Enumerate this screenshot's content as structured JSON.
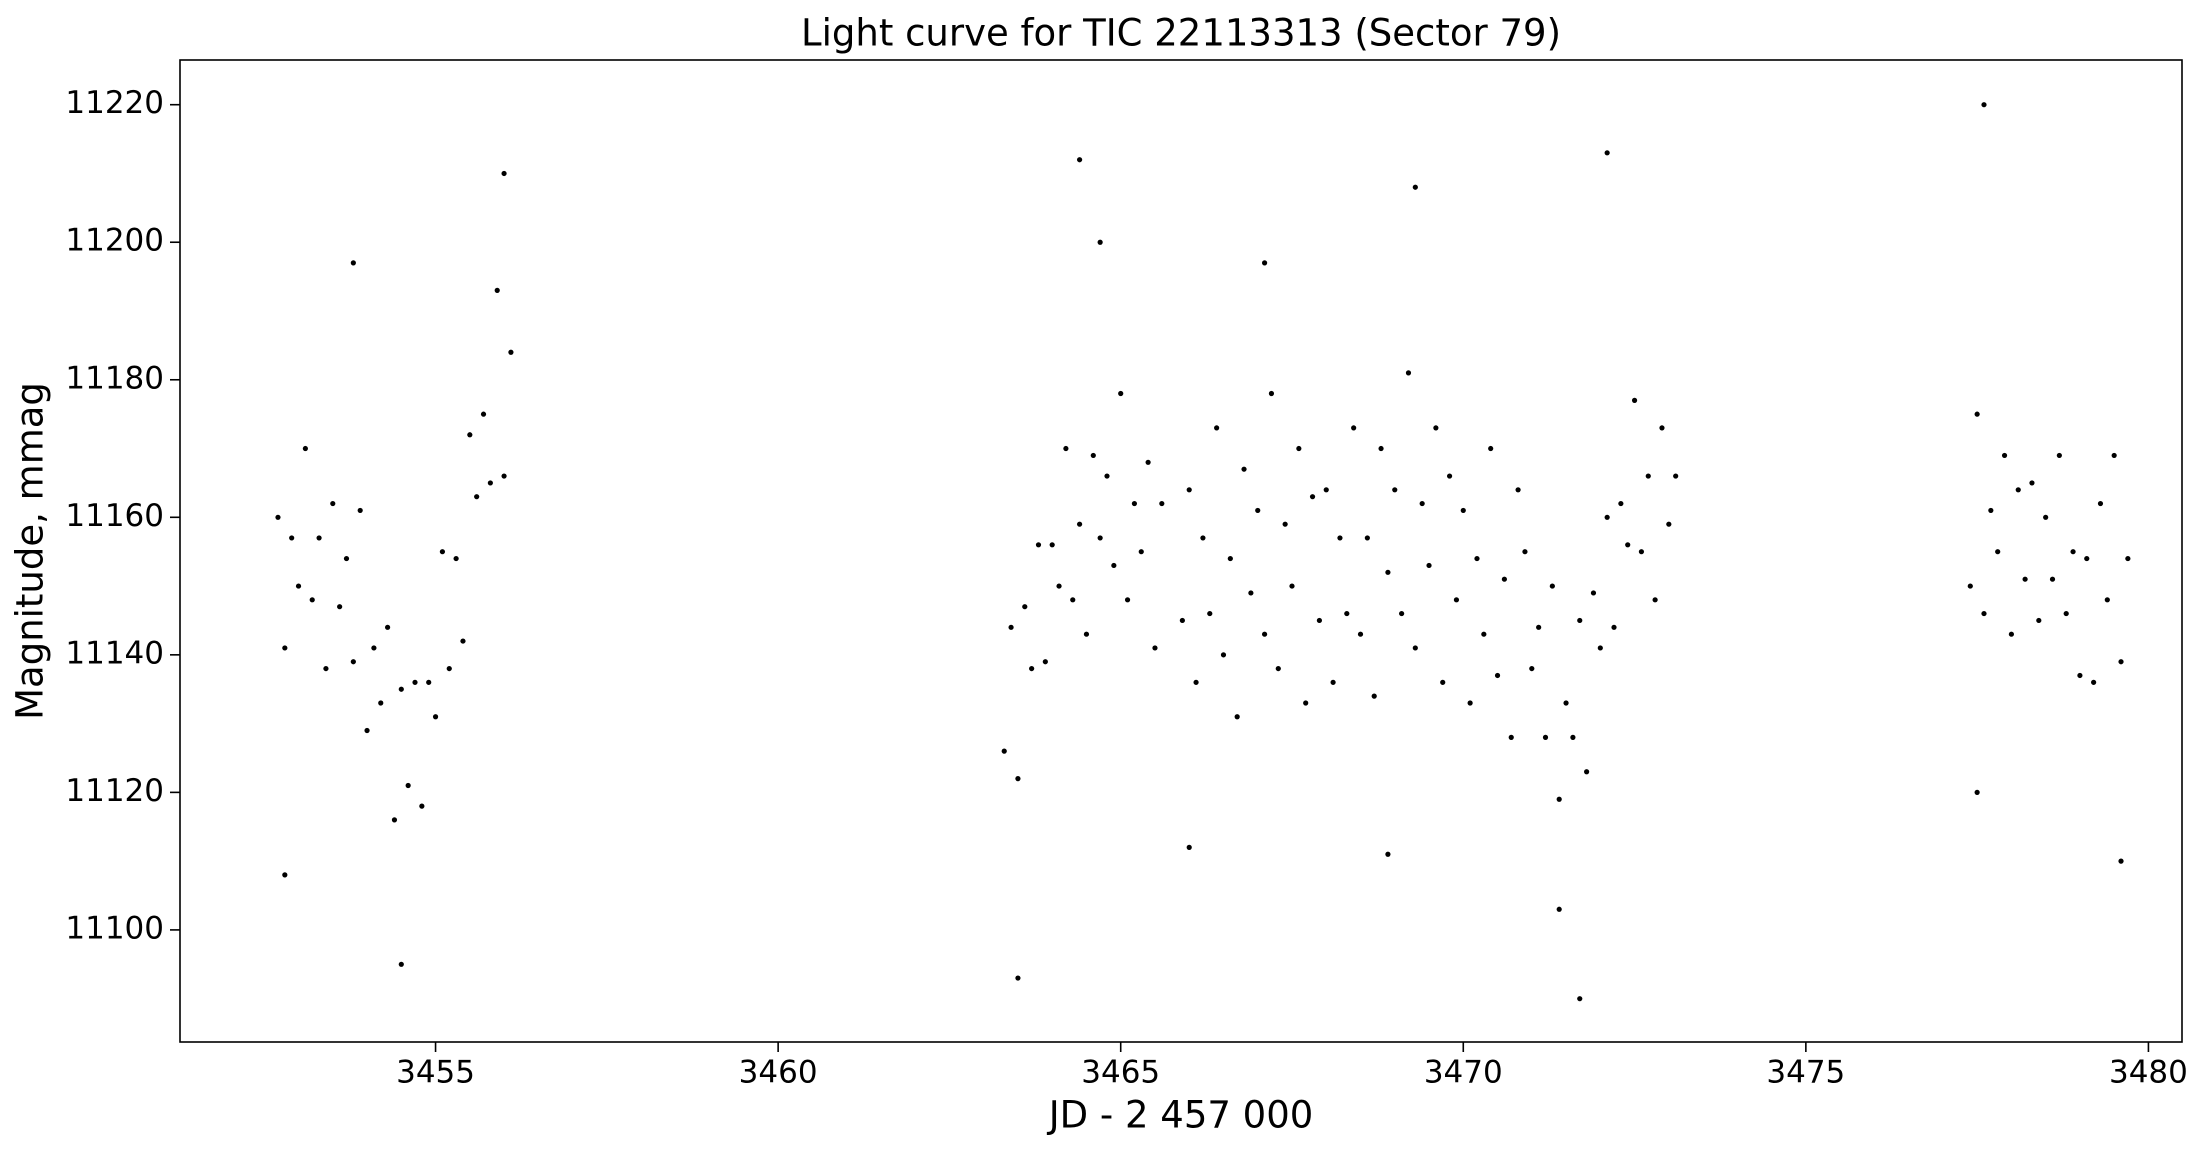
{
  "chart_data": {
    "type": "scatter",
    "title": "Light curve for TIC 22113313 (Sector 79)",
    "xlabel": "JD - 2 457 000",
    "ylabel": "Magnitude, mmag",
    "color": "#000000",
    "xlim": [
      3451.27,
      3480.49
    ],
    "ylim": [
      11083.7,
      11226.5
    ],
    "xticks": [
      3455,
      3460,
      3465,
      3470,
      3475,
      3480
    ],
    "yticks": [
      11100,
      11120,
      11140,
      11160,
      11180,
      11200,
      11220
    ],
    "x": [
      3452.7,
      3452.8,
      3452.9,
      3453,
      3453.1,
      3453.2,
      3453.3,
      3453.4,
      3453.5,
      3453.6,
      3453.7,
      3453.8,
      3453.9,
      3454,
      3454.1,
      3454.2,
      3454.3,
      3454.4,
      3454.5,
      3454.6,
      3454.7,
      3454.8,
      3454.9,
      3455,
      3455.1,
      3455.2,
      3455.3,
      3455.4,
      3455.5,
      3455.6,
      3455.7,
      3455.8,
      3455.9,
      3456,
      3456.1,
      3463.3,
      3463.4,
      3463.5,
      3463.6,
      3463.7,
      3463.8,
      3463.9,
      3464,
      3464.1,
      3464.2,
      3464.3,
      3464.4,
      3464.5,
      3464.6,
      3464.7,
      3464.8,
      3464.9,
      3465,
      3465.1,
      3465.2,
      3465.3,
      3465.4,
      3465.5,
      3465.6,
      3465.9,
      3466,
      3466.1,
      3466.2,
      3466.3,
      3466.4,
      3466.5,
      3466.6,
      3466.7,
      3466.8,
      3466.9,
      3467,
      3467.1,
      3467.2,
      3467.3,
      3467.4,
      3467.5,
      3467.6,
      3467.7,
      3467.8,
      3467.9,
      3468,
      3468.1,
      3468.2,
      3468.3,
      3468.4,
      3468.5,
      3468.6,
      3468.7,
      3468.8,
      3468.9,
      3469,
      3469.1,
      3469.2,
      3469.3,
      3469.4,
      3469.5,
      3469.6,
      3469.7,
      3469.8,
      3469.9,
      3470,
      3470.1,
      3470.2,
      3470.3,
      3470.4,
      3470.5,
      3470.6,
      3470.7,
      3470.8,
      3470.9,
      3471,
      3471.1,
      3471.2,
      3471.3,
      3471.4,
      3471.5,
      3471.6,
      3471.7,
      3471.8,
      3471.9,
      3472,
      3472.1,
      3472.2,
      3472.3,
      3472.4,
      3472.5,
      3472.6,
      3472.7,
      3472.8,
      3472.9,
      3473,
      3473.1,
      3477.4,
      3477.5,
      3477.6,
      3477.7,
      3477.8,
      3477.9,
      3478,
      3478.1,
      3478.2,
      3478.3,
      3478.4,
      3478.5,
      3478.6,
      3478.7,
      3478.8,
      3478.9,
      3479,
      3479.1,
      3479.2,
      3479.3,
      3479.4,
      3479.5,
      3479.6,
      3479.7,
      3452.8,
      3454.5,
      3456,
      3453.8,
      3463.5,
      3464.4,
      3464.7,
      3466,
      3469.3,
      3468.9,
      3467.1,
      3471.7,
      3472.1,
      3471.4,
      3477.6,
      3477.5,
      3479.6
    ],
    "values": [
      11160,
      11141,
      11157,
      11150,
      11170,
      11148,
      11157,
      11138,
      11162,
      11147,
      11154,
      11139,
      11161,
      11129,
      11141,
      11133,
      11144,
      11116,
      11135,
      11121,
      11136,
      11118,
      11136,
      11131,
      11155,
      11138,
      11154,
      11142,
      11172,
      11163,
      11175,
      11165,
      11193,
      11166,
      11184,
      11126,
      11144,
      11122,
      11147,
      11138,
      11156,
      11139,
      11156,
      11150,
      11170,
      11148,
      11159,
      11143,
      11169,
      11157,
      11166,
      11153,
      11178,
      11148,
      11162,
      11155,
      11168,
      11141,
      11162,
      11145,
      11164,
      11136,
      11157,
      11146,
      11173,
      11140,
      11154,
      11131,
      11167,
      11149,
      11161,
      11143,
      11178,
      11138,
      11159,
      11150,
      11170,
      11133,
      11163,
      11145,
      11164,
      11136,
      11157,
      11146,
      11173,
      11143,
      11157,
      11134,
      11170,
      11152,
      11164,
      11146,
      11181,
      11141,
      11162,
      11153,
      11173,
      11136,
      11166,
      11148,
      11161,
      11133,
      11154,
      11143,
      11170,
      11137,
      11151,
      11128,
      11164,
      11155,
      11138,
      11144,
      11128,
      11150,
      11119,
      11133,
      11128,
      11145,
      11123,
      11149,
      11141,
      11160,
      11144,
      11162,
      11156,
      11177,
      11155,
      11166,
      11148,
      11173,
      11159,
      11166,
      11150,
      11175,
      11146,
      11161,
      11155,
      11169,
      11143,
      11164,
      11151,
      11165,
      11145,
      11160,
      11151,
      11169,
      11146,
      11155,
      11137,
      11154,
      11136,
      11162,
      11148,
      11169,
      11139,
      11154,
      11108,
      11095,
      11210,
      11197,
      11093,
      11212,
      11200,
      11112,
      11208,
      11111,
      11197,
      11090,
      11213,
      11103,
      11220,
      11120,
      11110
    ]
  }
}
